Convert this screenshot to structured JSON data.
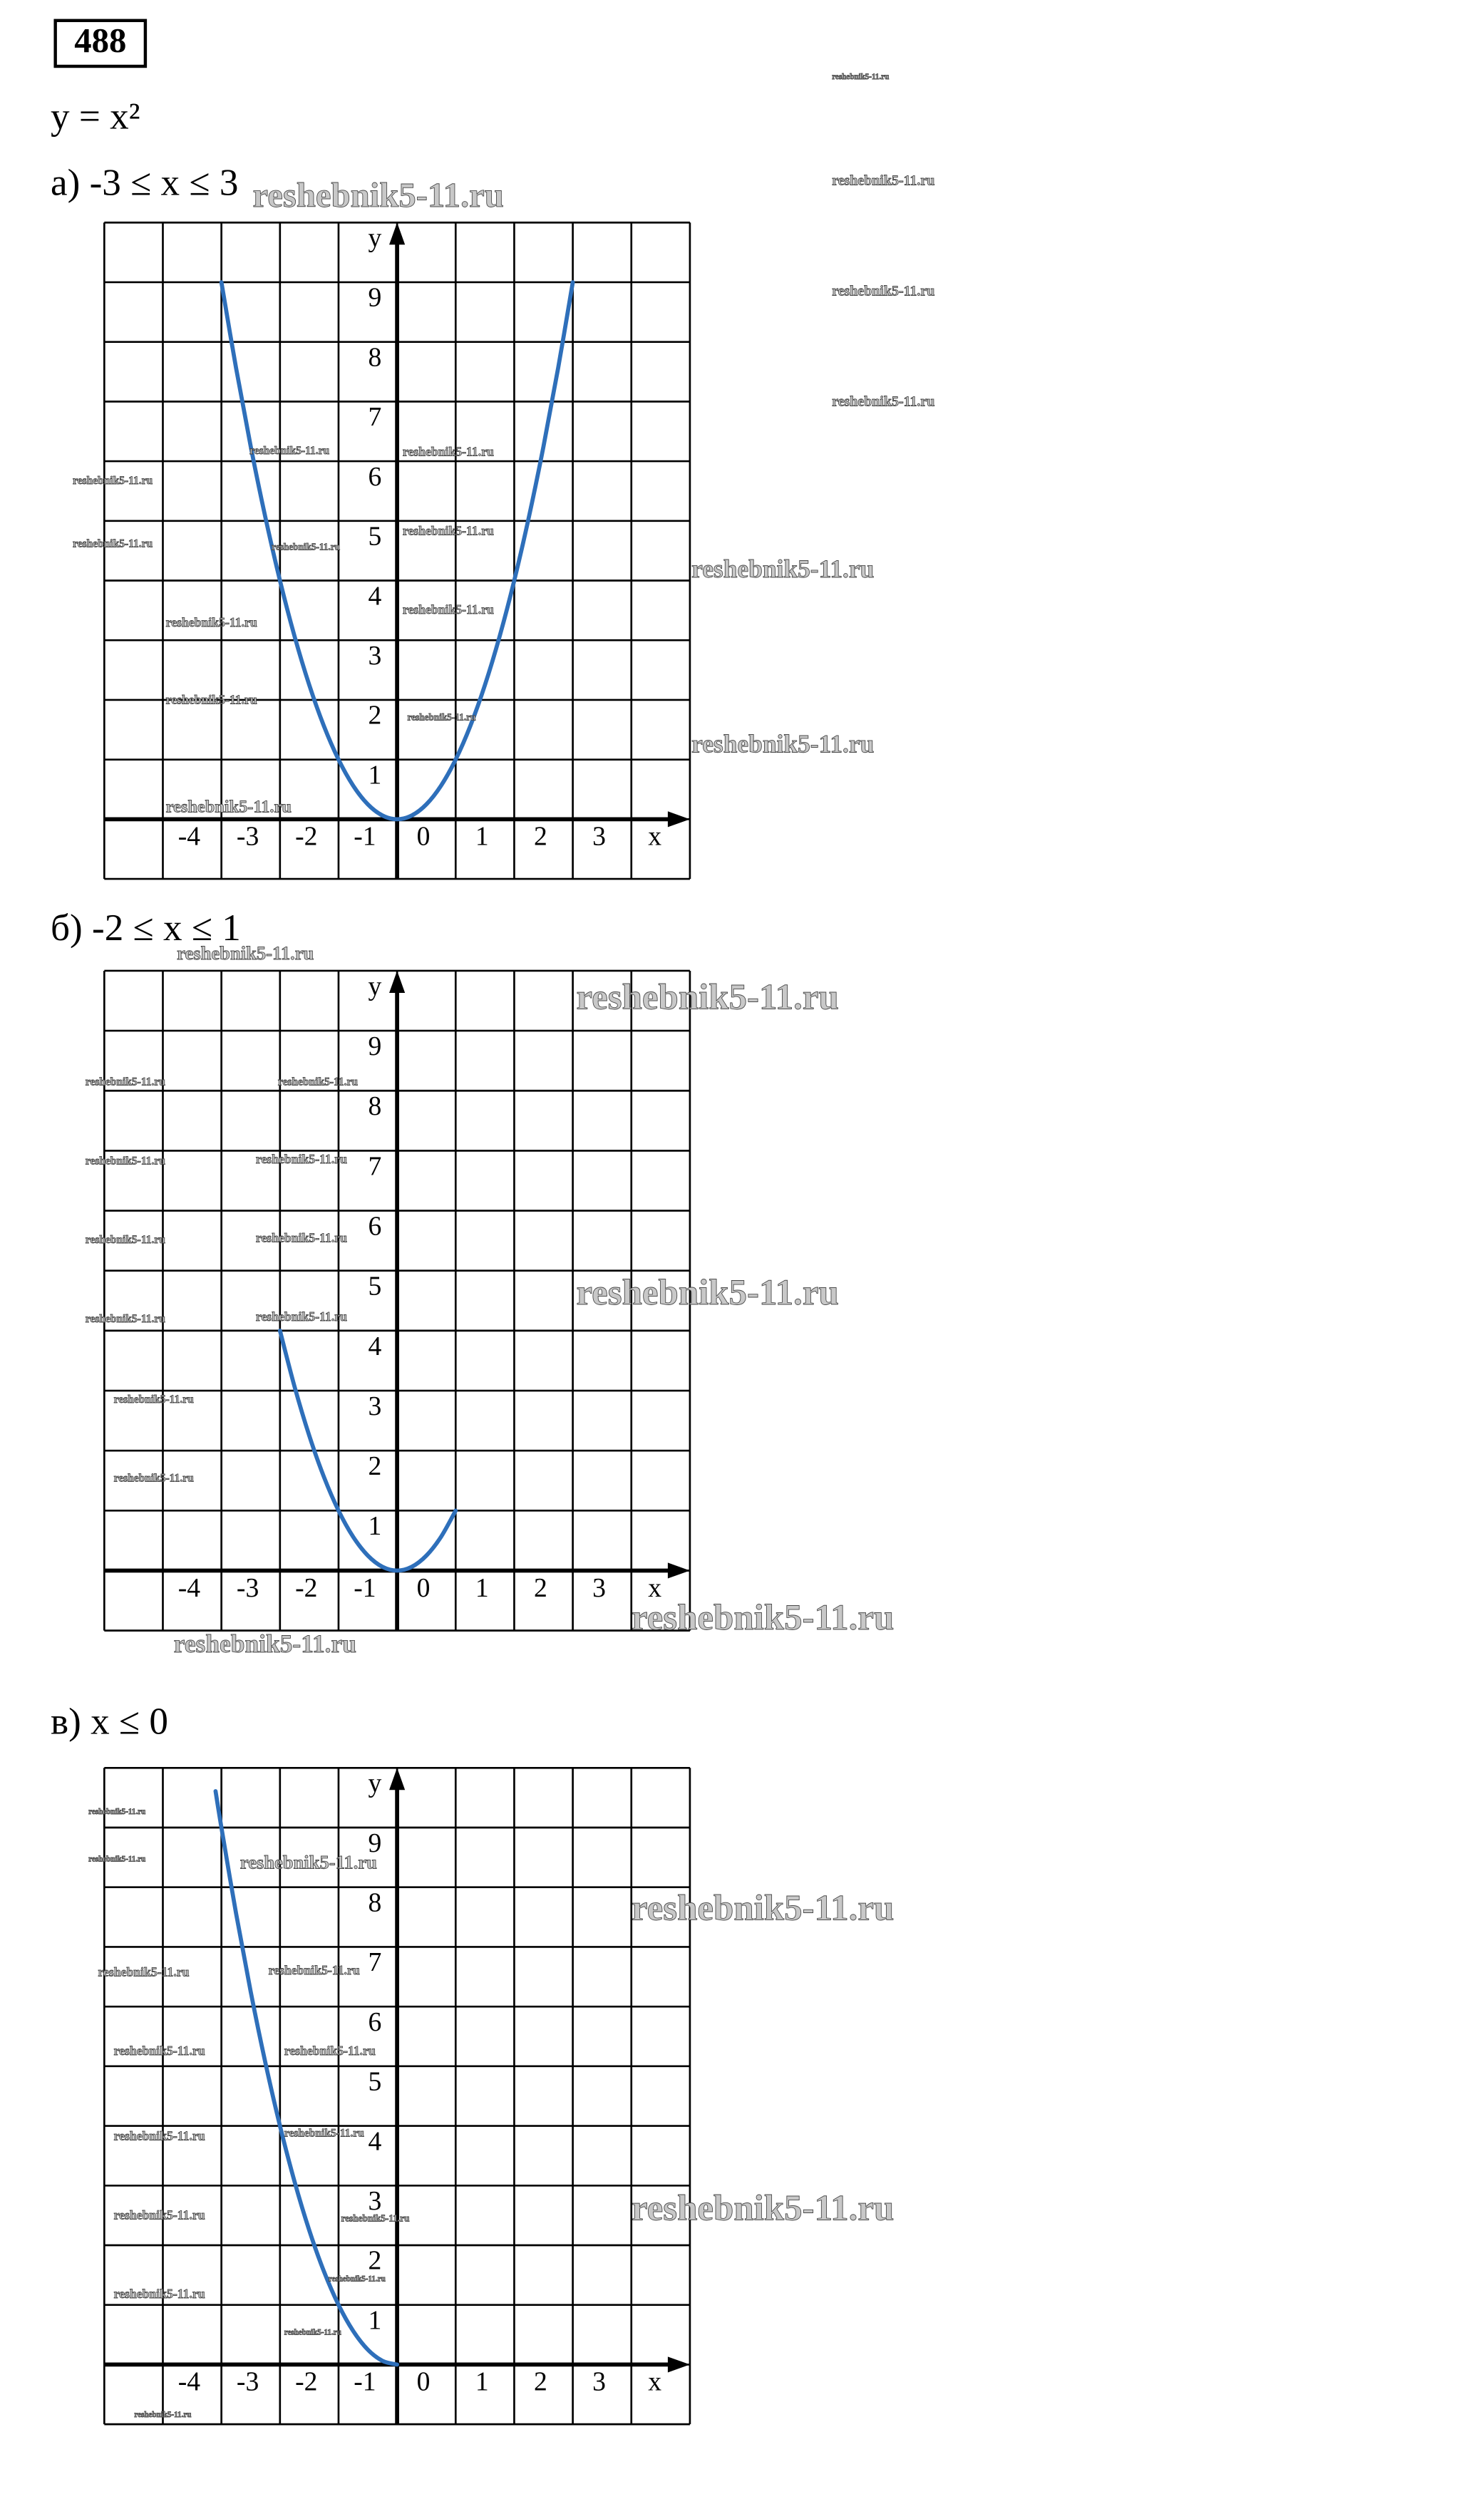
{
  "number": "488",
  "formula": "y = x²",
  "watermark": "reshebnik5-11.ru",
  "chart_data": [
    {
      "type": "line",
      "title": "а) -3 ≤ x ≤ 3",
      "x_label": "x",
      "y_label": "y",
      "color": "#2e6fba",
      "grid": true,
      "xlim": [
        -5,
        5
      ],
      "ylim": [
        -1,
        10
      ],
      "xticks": [
        -4,
        -3,
        -2,
        -1,
        0,
        1,
        2,
        3
      ],
      "yticks": [
        1,
        2,
        3,
        4,
        5,
        6,
        7,
        8,
        9
      ],
      "x": [
        -3,
        -2.75,
        -2.5,
        -2.25,
        -2,
        -1.75,
        -1.5,
        -1.25,
        -1,
        -0.75,
        -0.5,
        -0.25,
        0,
        0.25,
        0.5,
        0.75,
        1,
        1.25,
        1.5,
        1.75,
        2,
        2.25,
        2.5,
        2.75,
        3
      ],
      "values": [
        9,
        7.5625,
        6.25,
        5.0625,
        4,
        3.0625,
        2.25,
        1.5625,
        1,
        0.5625,
        0.25,
        0.0625,
        0,
        0.0625,
        0.25,
        0.5625,
        1,
        1.5625,
        2.25,
        3.0625,
        4,
        5.0625,
        6.25,
        7.5625,
        9
      ]
    },
    {
      "type": "line",
      "title": "б) -2 ≤ x ≤ 1",
      "x_label": "x",
      "y_label": "y",
      "color": "#2e6fba",
      "grid": true,
      "xlim": [
        -5,
        5
      ],
      "ylim": [
        -1,
        10
      ],
      "xticks": [
        -4,
        -3,
        -2,
        -1,
        0,
        1,
        2,
        3
      ],
      "yticks": [
        1,
        2,
        3,
        4,
        5,
        6,
        7,
        8,
        9
      ],
      "x": [
        -2,
        -1.75,
        -1.5,
        -1.25,
        -1,
        -0.75,
        -0.5,
        -0.25,
        0,
        0.25,
        0.5,
        0.75,
        1
      ],
      "values": [
        4,
        3.0625,
        2.25,
        1.5625,
        1,
        0.5625,
        0.25,
        0.0625,
        0,
        0.0625,
        0.25,
        0.5625,
        1
      ]
    },
    {
      "type": "line",
      "title": "в) x ≤ 0",
      "x_label": "x",
      "y_label": "y",
      "color": "#2e6fba",
      "grid": true,
      "xlim": [
        -5,
        5
      ],
      "ylim": [
        -1,
        10
      ],
      "xticks": [
        -4,
        -3,
        -2,
        -1,
        0,
        1,
        2,
        3
      ],
      "yticks": [
        1,
        2,
        3,
        4,
        5,
        6,
        7,
        8,
        9
      ],
      "x": [
        -3.1,
        -3,
        -2.75,
        -2.5,
        -2.25,
        -2,
        -1.75,
        -1.5,
        -1.25,
        -1,
        -0.75,
        -0.5,
        -0.25,
        0
      ],
      "values": [
        9.61,
        9,
        7.5625,
        6.25,
        5.0625,
        4,
        3.0625,
        2.25,
        1.5625,
        1,
        0.5625,
        0.25,
        0.0625,
        0
      ]
    }
  ]
}
